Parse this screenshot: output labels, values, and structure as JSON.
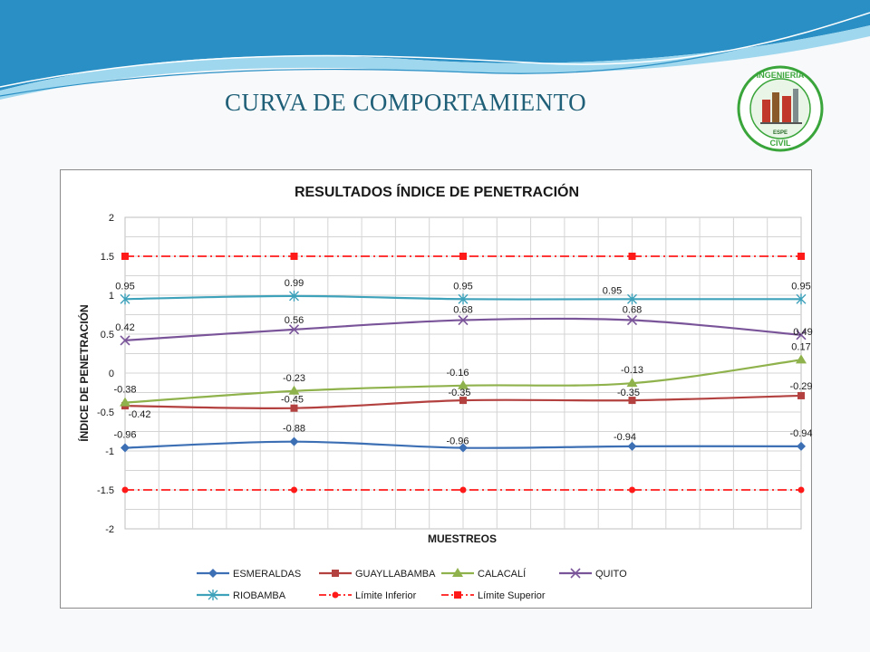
{
  "slide": {
    "title": "CURVA DE COMPORTAMIENTO",
    "logo": {
      "text_top": "INGENIERIA",
      "text_mid": "ESPE",
      "text_bottom": "CIVIL"
    }
  },
  "colors": {
    "title": "#1f5f77",
    "wave_dark": "#2a8fc4",
    "wave_light": "#9fd7ee",
    "logo_ring": "#3aa53a"
  },
  "chart_data": {
    "type": "line",
    "title": "RESULTADOS ÍNDICE DE PENETRACIÓN",
    "xlabel": "MUESTREOS",
    "ylabel": "ÍNDICE DE PENETRACIÓN",
    "ylim": [
      -2,
      2
    ],
    "yticks": [
      "2",
      "1.5",
      "1",
      "0.5",
      "0",
      "-0.5",
      "-1",
      "-1.5",
      "-2"
    ],
    "ytick_values": [
      2,
      1.5,
      1,
      0.5,
      0,
      -0.5,
      -1,
      -1.5,
      -2
    ],
    "x": [
      1,
      2,
      3,
      4,
      5
    ],
    "grid": true,
    "legend_position": "bottom",
    "series": [
      {
        "name": "ESMERALDAS",
        "values": [
          -0.96,
          -0.88,
          -0.96,
          -0.94,
          -0.94
        ],
        "labels": [
          "-0.96",
          "-0.88",
          "-0.96",
          "-0.94",
          "-0.94"
        ],
        "color": "#3c6fb4",
        "marker": "diamond",
        "dash": "solid",
        "smooth": true
      },
      {
        "name": "GUAYLLABAMBA",
        "values": [
          -0.42,
          -0.45,
          -0.35,
          -0.35,
          -0.29
        ],
        "labels": [
          "-0.42",
          "-0.45",
          "-0.35",
          "-0.35",
          "-0.29"
        ],
        "color": "#b3413f",
        "marker": "square",
        "dash": "solid",
        "smooth": true
      },
      {
        "name": "CALACALÍ",
        "values": [
          -0.38,
          -0.23,
          -0.16,
          -0.13,
          0.17
        ],
        "labels": [
          "-0.38",
          "-0.23",
          "-0.16",
          "-0.13",
          "0.17"
        ],
        "color": "#8fb24c",
        "marker": "triangle",
        "dash": "solid",
        "smooth": true
      },
      {
        "name": "QUITO",
        "values": [
          0.42,
          0.56,
          0.68,
          0.68,
          0.49
        ],
        "labels": [
          "0.42",
          "0.56",
          "0.68",
          "0.68",
          "0.49"
        ],
        "color": "#7a5499",
        "marker": "x",
        "dash": "solid",
        "smooth": true
      },
      {
        "name": "RIOBAMBA",
        "values": [
          0.95,
          0.99,
          0.95,
          0.95,
          0.95
        ],
        "labels": [
          "0.95",
          "0.99",
          "0.95",
          "0.95",
          "0.95"
        ],
        "color": "#3fa2bb",
        "marker": "asterisk",
        "dash": "solid",
        "smooth": true
      },
      {
        "name": "Límite Inferior",
        "values": [
          -1.5,
          -1.5,
          -1.5,
          -1.5,
          -1.5
        ],
        "labels": [],
        "color": "#ff1a1a",
        "marker": "circle",
        "dash": "dashdot",
        "smooth": false
      },
      {
        "name": "Límite Superior",
        "values": [
          1.5,
          1.5,
          1.5,
          1.5,
          1.5
        ],
        "labels": [],
        "color": "#ff1a1a",
        "marker": "square",
        "dash": "dashdot",
        "smooth": false
      }
    ]
  }
}
